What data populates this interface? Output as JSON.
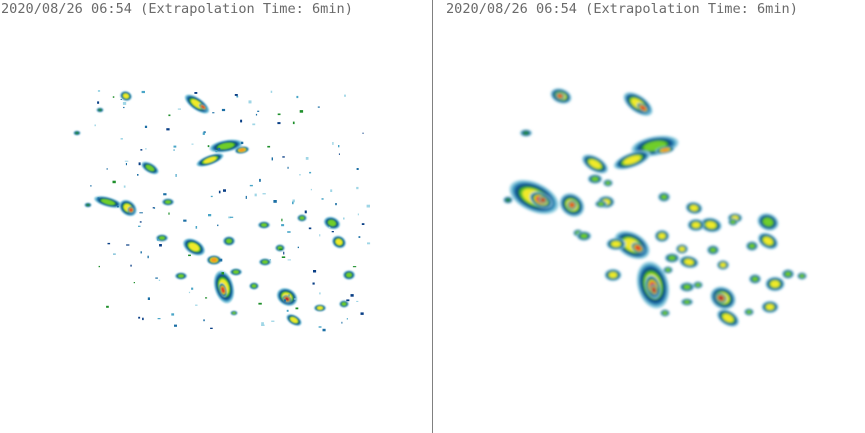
{
  "panels": [
    {
      "id": "observed",
      "title": "2020/08/26 06:54 (Extrapolation Time: 6min)"
    },
    {
      "id": "extrapolated",
      "title": "2020/08/26 06:54 (Extrapolation Time: 6min)"
    }
  ],
  "colors": {
    "background": "#ffffff",
    "title_text": "#6a6a6a",
    "divider": "#808080",
    "reflectivity_scale": [
      "#9fd6e6",
      "#4aa6c8",
      "#1c6fa5",
      "#0a3f86",
      "#1f8f2b",
      "#6fce2a",
      "#f1e92a",
      "#f59a1f",
      "#e2352a",
      "#b1143b"
    ]
  }
}
